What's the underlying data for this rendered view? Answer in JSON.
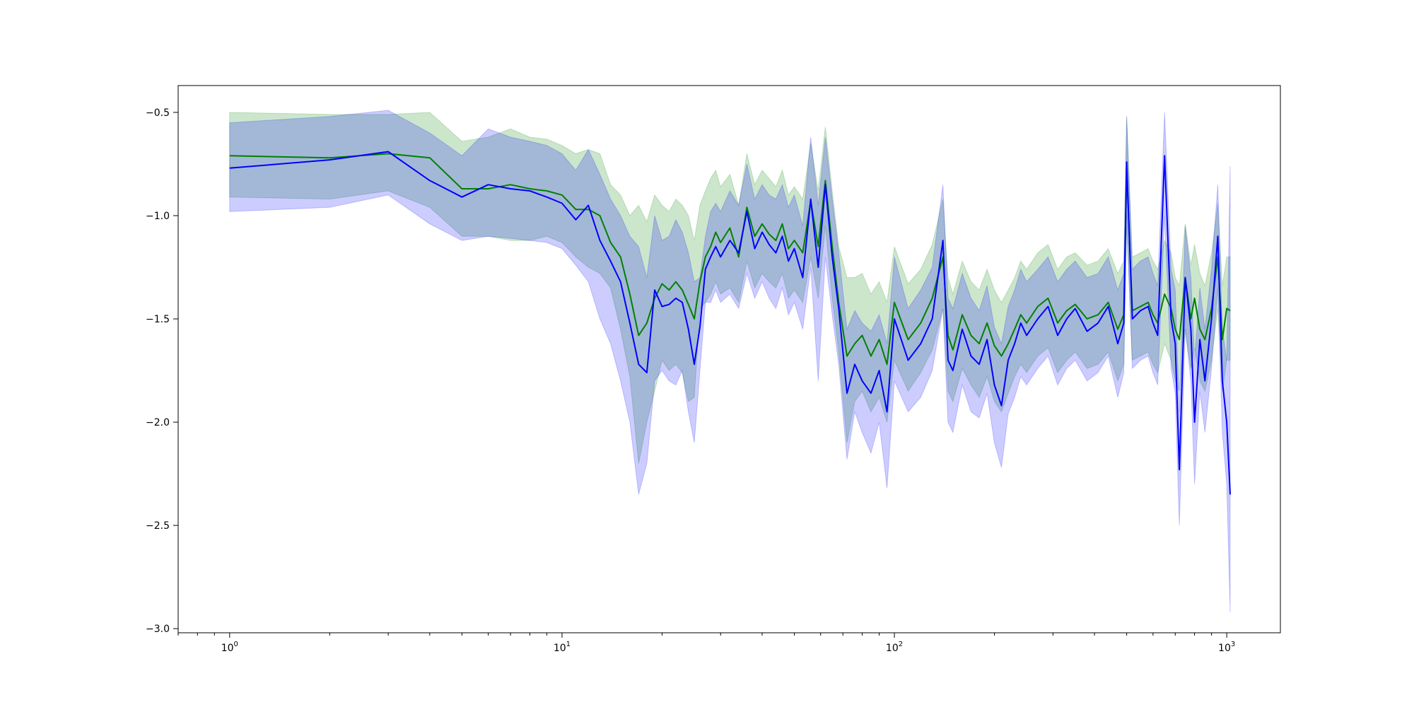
{
  "chart_data": {
    "type": "line",
    "title": "",
    "xlabel": "",
    "ylabel": "",
    "xscale": "log",
    "xlim": [
      0.7,
      1450
    ],
    "ylim": [
      -3.02,
      -0.37
    ],
    "grid": false,
    "x_ticks": [
      {
        "value": 1,
        "base": "10",
        "exp": "0"
      },
      {
        "value": 10,
        "base": "10",
        "exp": "1"
      },
      {
        "value": 100,
        "base": "10",
        "exp": "2"
      },
      {
        "value": 1000,
        "base": "10",
        "exp": "3"
      }
    ],
    "y_ticks": [
      {
        "value": -0.5,
        "label": "−0.5"
      },
      {
        "value": -1.0,
        "label": "−1.0"
      },
      {
        "value": -1.5,
        "label": "−1.5"
      },
      {
        "value": -2.0,
        "label": "−2.0"
      },
      {
        "value": -2.5,
        "label": "−2.5"
      },
      {
        "value": -3.0,
        "label": "−3.0"
      }
    ],
    "series": [
      {
        "color": "#008000",
        "band_color": "#008000",
        "band_opacity": 0.2,
        "x": [
          1,
          2,
          3,
          4,
          5,
          6,
          7,
          8,
          9,
          10,
          11,
          12,
          13,
          14,
          15,
          16,
          17,
          18,
          19,
          20,
          21,
          22,
          23,
          24,
          25,
          26,
          27,
          28,
          29,
          30,
          32,
          34,
          36,
          38,
          40,
          42,
          44,
          46,
          48,
          50,
          53,
          56,
          59,
          62,
          65,
          68,
          72,
          76,
          80,
          85,
          90,
          95,
          100,
          110,
          120,
          130,
          140,
          145,
          150,
          160,
          170,
          180,
          190,
          200,
          210,
          220,
          230,
          240,
          250,
          270,
          290,
          310,
          330,
          350,
          380,
          410,
          440,
          470,
          490,
          500,
          520,
          550,
          580,
          600,
          620,
          650,
          680,
          700,
          720,
          750,
          780,
          800,
          830,
          860,
          900,
          940,
          970,
          1000,
          1024
        ],
        "y": [
          -0.71,
          -0.72,
          -0.7,
          -0.72,
          -0.87,
          -0.87,
          -0.85,
          -0.87,
          -0.88,
          -0.9,
          -0.97,
          -0.97,
          -1.0,
          -1.13,
          -1.2,
          -1.38,
          -1.58,
          -1.52,
          -1.4,
          -1.33,
          -1.36,
          -1.32,
          -1.36,
          -1.43,
          -1.5,
          -1.32,
          -1.2,
          -1.15,
          -1.08,
          -1.13,
          -1.06,
          -1.2,
          -0.96,
          -1.1,
          -1.04,
          -1.09,
          -1.12,
          -1.04,
          -1.16,
          -1.12,
          -1.18,
          -0.93,
          -1.15,
          -0.83,
          -1.15,
          -1.42,
          -1.68,
          -1.62,
          -1.58,
          -1.68,
          -1.6,
          -1.72,
          -1.42,
          -1.6,
          -1.52,
          -1.4,
          -1.2,
          -1.58,
          -1.65,
          -1.48,
          -1.58,
          -1.62,
          -1.52,
          -1.63,
          -1.68,
          -1.62,
          -1.55,
          -1.48,
          -1.52,
          -1.44,
          -1.4,
          -1.52,
          -1.46,
          -1.43,
          -1.5,
          -1.48,
          -1.42,
          -1.55,
          -1.48,
          -0.78,
          -1.46,
          -1.44,
          -1.42,
          -1.48,
          -1.52,
          -1.38,
          -1.45,
          -1.55,
          -1.6,
          -1.3,
          -1.5,
          -1.4,
          -1.55,
          -1.6,
          -1.45,
          -1.2,
          -1.6,
          -1.45,
          -1.46
        ],
        "lower": [
          -0.91,
          -0.92,
          -0.88,
          -0.96,
          -1.1,
          -1.1,
          -1.12,
          -1.12,
          -1.1,
          -1.13,
          -1.2,
          -1.25,
          -1.28,
          -1.35,
          -1.55,
          -1.78,
          -2.2,
          -2.0,
          -1.85,
          -1.7,
          -1.75,
          -1.72,
          -1.76,
          -1.9,
          -1.88,
          -1.45,
          -1.42,
          -1.38,
          -1.32,
          -1.38,
          -1.35,
          -1.42,
          -1.22,
          -1.35,
          -1.28,
          -1.32,
          -1.35,
          -1.28,
          -1.4,
          -1.36,
          -1.42,
          -1.2,
          -1.4,
          -1.05,
          -1.4,
          -1.66,
          -2.1,
          -1.9,
          -1.85,
          -1.95,
          -1.88,
          -2.0,
          -1.7,
          -1.85,
          -1.76,
          -1.65,
          -1.45,
          -1.85,
          -1.9,
          -1.74,
          -1.82,
          -1.88,
          -1.78,
          -1.9,
          -1.95,
          -1.86,
          -1.78,
          -1.72,
          -1.76,
          -1.68,
          -1.64,
          -1.76,
          -1.7,
          -1.66,
          -1.74,
          -1.72,
          -1.66,
          -1.8,
          -1.72,
          -1.05,
          -1.7,
          -1.68,
          -1.66,
          -1.72,
          -1.76,
          -1.62,
          -1.7,
          -1.8,
          -1.85,
          -1.55,
          -1.74,
          -1.64,
          -1.8,
          -1.85,
          -1.7,
          -1.45,
          -1.85,
          -1.7,
          -1.7
        ],
        "upper": [
          -0.5,
          -0.51,
          -0.51,
          -0.5,
          -0.64,
          -0.62,
          -0.58,
          -0.62,
          -0.63,
          -0.66,
          -0.7,
          -0.68,
          -0.7,
          -0.85,
          -0.9,
          -1.0,
          -0.95,
          -1.03,
          -0.9,
          -0.95,
          -0.98,
          -0.92,
          -0.95,
          -1.0,
          -1.12,
          -0.95,
          -0.88,
          -0.82,
          -0.78,
          -0.86,
          -0.8,
          -0.95,
          -0.7,
          -0.85,
          -0.78,
          -0.82,
          -0.86,
          -0.78,
          -0.9,
          -0.86,
          -0.92,
          -0.65,
          -0.88,
          -0.57,
          -0.88,
          -1.15,
          -1.3,
          -1.3,
          -1.28,
          -1.38,
          -1.32,
          -1.42,
          -1.15,
          -1.33,
          -1.26,
          -1.14,
          -0.92,
          -1.3,
          -1.38,
          -1.22,
          -1.32,
          -1.36,
          -1.26,
          -1.36,
          -1.42,
          -1.36,
          -1.3,
          -1.22,
          -1.26,
          -1.18,
          -1.14,
          -1.26,
          -1.2,
          -1.18,
          -1.24,
          -1.22,
          -1.16,
          -1.28,
          -1.22,
          -0.52,
          -1.2,
          -1.18,
          -1.16,
          -1.22,
          -1.26,
          -1.12,
          -1.18,
          -1.3,
          -1.34,
          -1.04,
          -1.24,
          -1.14,
          -1.28,
          -1.34,
          -1.18,
          -0.94,
          -1.34,
          -1.2,
          -1.2
        ]
      },
      {
        "color": "#0000ff",
        "band_color": "#0000ff",
        "band_opacity": 0.2,
        "x": [
          1,
          2,
          3,
          4,
          5,
          6,
          7,
          8,
          9,
          10,
          11,
          12,
          13,
          14,
          15,
          16,
          17,
          18,
          19,
          20,
          21,
          22,
          23,
          24,
          25,
          26,
          27,
          28,
          29,
          30,
          32,
          34,
          36,
          38,
          40,
          42,
          44,
          46,
          48,
          50,
          53,
          56,
          59,
          62,
          65,
          68,
          72,
          76,
          80,
          85,
          90,
          95,
          100,
          110,
          120,
          130,
          140,
          145,
          150,
          160,
          170,
          180,
          190,
          200,
          210,
          220,
          230,
          240,
          250,
          270,
          290,
          310,
          330,
          350,
          380,
          410,
          440,
          470,
          490,
          500,
          520,
          550,
          580,
          600,
          620,
          650,
          680,
          700,
          720,
          750,
          780,
          800,
          830,
          860,
          900,
          940,
          970,
          1000,
          1024
        ],
        "y": [
          -0.77,
          -0.73,
          -0.69,
          -0.83,
          -0.91,
          -0.85,
          -0.87,
          -0.88,
          -0.91,
          -0.94,
          -1.02,
          -0.95,
          -1.12,
          -1.22,
          -1.32,
          -1.52,
          -1.72,
          -1.76,
          -1.36,
          -1.44,
          -1.43,
          -1.4,
          -1.42,
          -1.55,
          -1.72,
          -1.54,
          -1.26,
          -1.2,
          -1.15,
          -1.2,
          -1.12,
          -1.18,
          -0.98,
          -1.16,
          -1.08,
          -1.14,
          -1.18,
          -1.1,
          -1.22,
          -1.16,
          -1.3,
          -0.92,
          -1.25,
          -0.85,
          -1.2,
          -1.45,
          -1.86,
          -1.72,
          -1.8,
          -1.86,
          -1.75,
          -1.95,
          -1.5,
          -1.7,
          -1.62,
          -1.5,
          -1.12,
          -1.7,
          -1.75,
          -1.55,
          -1.68,
          -1.72,
          -1.6,
          -1.82,
          -1.92,
          -1.7,
          -1.62,
          -1.52,
          -1.58,
          -1.5,
          -1.44,
          -1.58,
          -1.5,
          -1.45,
          -1.56,
          -1.52,
          -1.44,
          -1.62,
          -1.52,
          -0.74,
          -1.5,
          -1.46,
          -1.44,
          -1.52,
          -1.58,
          -0.71,
          -1.5,
          -1.62,
          -2.23,
          -1.3,
          -1.55,
          -2.0,
          -1.6,
          -1.8,
          -1.5,
          -1.1,
          -1.8,
          -2.0,
          -2.35
        ],
        "lower": [
          -0.98,
          -0.96,
          -0.9,
          -1.04,
          -1.12,
          -1.1,
          -1.11,
          -1.12,
          -1.13,
          -1.16,
          -1.24,
          -1.32,
          -1.5,
          -1.62,
          -1.8,
          -2.0,
          -2.35,
          -2.2,
          -1.8,
          -1.75,
          -1.8,
          -1.82,
          -1.75,
          -1.95,
          -2.1,
          -1.75,
          -1.42,
          -1.42,
          -1.36,
          -1.42,
          -1.38,
          -1.45,
          -1.28,
          -1.4,
          -1.32,
          -1.4,
          -1.45,
          -1.35,
          -1.48,
          -1.42,
          -1.55,
          -1.25,
          -1.8,
          -1.2,
          -1.48,
          -1.72,
          -2.18,
          -1.95,
          -2.05,
          -2.15,
          -2.0,
          -2.32,
          -1.8,
          -1.95,
          -1.88,
          -1.75,
          -1.45,
          -2.0,
          -2.05,
          -1.82,
          -1.95,
          -1.98,
          -1.86,
          -2.1,
          -2.22,
          -1.96,
          -1.88,
          -1.78,
          -1.82,
          -1.74,
          -1.68,
          -1.82,
          -1.74,
          -1.7,
          -1.8,
          -1.76,
          -1.68,
          -1.88,
          -1.76,
          -1.0,
          -1.74,
          -1.7,
          -1.68,
          -1.76,
          -1.82,
          -1.0,
          -1.74,
          -1.86,
          -2.5,
          -1.55,
          -1.8,
          -2.3,
          -1.85,
          -2.05,
          -1.74,
          -1.35,
          -2.05,
          -2.3,
          -2.92
        ],
        "upper": [
          -0.55,
          -0.52,
          -0.49,
          -0.6,
          -0.71,
          -0.58,
          -0.62,
          -0.64,
          -0.66,
          -0.7,
          -0.78,
          -0.68,
          -0.8,
          -0.92,
          -1.0,
          -1.1,
          -1.15,
          -1.3,
          -1.0,
          -1.12,
          -1.1,
          -1.02,
          -1.08,
          -1.18,
          -1.32,
          -1.3,
          -1.1,
          -0.98,
          -0.94,
          -0.98,
          -0.88,
          -0.95,
          -0.75,
          -0.92,
          -0.85,
          -0.9,
          -0.92,
          -0.85,
          -0.96,
          -0.9,
          -1.05,
          -0.62,
          -0.95,
          -0.62,
          -0.92,
          -1.18,
          -1.55,
          -1.46,
          -1.52,
          -1.56,
          -1.48,
          -1.62,
          -1.2,
          -1.45,
          -1.36,
          -1.25,
          -0.85,
          -1.4,
          -1.45,
          -1.28,
          -1.4,
          -1.46,
          -1.34,
          -1.54,
          -1.62,
          -1.44,
          -1.36,
          -1.26,
          -1.32,
          -1.26,
          -1.2,
          -1.32,
          -1.26,
          -1.22,
          -1.3,
          -1.28,
          -1.2,
          -1.36,
          -1.28,
          -0.52,
          -1.26,
          -1.22,
          -1.2,
          -1.28,
          -1.34,
          -0.5,
          -1.26,
          -1.36,
          -1.95,
          -1.05,
          -1.3,
          -1.7,
          -1.35,
          -1.55,
          -1.26,
          -0.85,
          -1.55,
          -1.7,
          -0.76
        ]
      }
    ]
  }
}
